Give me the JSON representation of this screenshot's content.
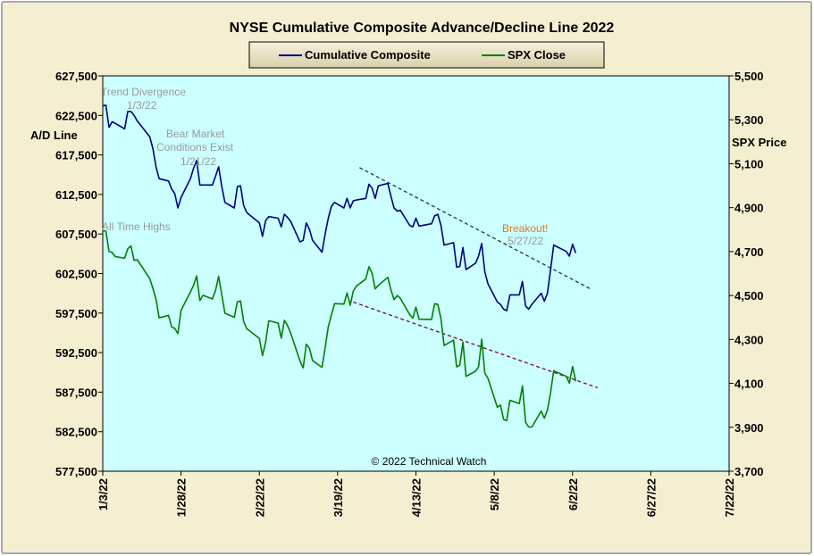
{
  "colors": {
    "outer_bg": "#f5efd2",
    "plot_bg": "#ccffff",
    "legend_bg": "#e9e2c4",
    "ad_line": "#000080",
    "spx_line": "#008000",
    "ad_trend": "#1f3b2a",
    "spx_trend": "#800040",
    "annotation_gray": "#9a9a9a",
    "breakout_orange": "#e07b22"
  },
  "chart_data": {
    "type": "line",
    "title": "NYSE Cumulative  Composite Advance/Decline Line 2022",
    "y_left_label": "A/D Line",
    "y_right_label": "SPX Price",
    "y_left_range": [
      577500,
      627500
    ],
    "y_right_range": [
      3700,
      5500
    ],
    "y_left_ticks": [
      "627,500",
      "622,500",
      "617,500",
      "612,500",
      "607,500",
      "602,500",
      "597,500",
      "592,500",
      "587,500",
      "582,500",
      "577,500"
    ],
    "y_right_ticks": [
      "5,500",
      "5,300",
      "5,100",
      "4,900",
      "4,700",
      "4,500",
      "4,300",
      "4,100",
      "3,900",
      "3,700"
    ],
    "x_range": [
      "2022-01-03",
      "2022-07-22"
    ],
    "x_ticks": [
      "1/3/22",
      "1/28/22",
      "2/22/22",
      "3/19/22",
      "4/13/22",
      "5/8/22",
      "6/2/22",
      "6/27/22",
      "7/22/22"
    ],
    "legend": {
      "placement": "top-center"
    },
    "series": [
      {
        "name": "Cumulative Composite",
        "axis": "left",
        "points": [
          [
            "2022-01-03",
            623700
          ],
          [
            "2022-01-04",
            623800
          ],
          [
            "2022-01-05",
            621000
          ],
          [
            "2022-01-06",
            621700
          ],
          [
            "2022-01-07",
            621500
          ],
          [
            "2022-01-10",
            620800
          ],
          [
            "2022-01-11",
            623000
          ],
          [
            "2022-01-12",
            623000
          ],
          [
            "2022-01-13",
            622500
          ],
          [
            "2022-01-14",
            621800
          ],
          [
            "2022-01-18",
            619800
          ],
          [
            "2022-01-19",
            618300
          ],
          [
            "2022-01-20",
            616000
          ],
          [
            "2022-01-21",
            614500
          ],
          [
            "2022-01-24",
            614200
          ],
          [
            "2022-01-25",
            613200
          ],
          [
            "2022-01-26",
            612600
          ],
          [
            "2022-01-27",
            610800
          ],
          [
            "2022-01-28",
            612100
          ],
          [
            "2022-01-31",
            614500
          ],
          [
            "2022-02-01",
            615800
          ],
          [
            "2022-02-02",
            616800
          ],
          [
            "2022-02-03",
            613700
          ],
          [
            "2022-02-04",
            613700
          ],
          [
            "2022-02-07",
            613700
          ],
          [
            "2022-02-08",
            614800
          ],
          [
            "2022-02-09",
            616000
          ],
          [
            "2022-02-10",
            613500
          ],
          [
            "2022-02-11",
            611500
          ],
          [
            "2022-02-14",
            610800
          ],
          [
            "2022-02-15",
            613500
          ],
          [
            "2022-02-16",
            613600
          ],
          [
            "2022-02-17",
            611100
          ],
          [
            "2022-02-18",
            610200
          ],
          [
            "2022-02-22",
            608900
          ],
          [
            "2022-02-23",
            607200
          ],
          [
            "2022-02-24",
            609200
          ],
          [
            "2022-02-25",
            609700
          ],
          [
            "2022-02-28",
            609500
          ],
          [
            "2022-03-01",
            608400
          ],
          [
            "2022-03-02",
            610000
          ],
          [
            "2022-03-03",
            609600
          ],
          [
            "2022-03-04",
            609100
          ],
          [
            "2022-03-07",
            606500
          ],
          [
            "2022-03-08",
            606700
          ],
          [
            "2022-03-09",
            608900
          ],
          [
            "2022-03-10",
            608100
          ],
          [
            "2022-03-11",
            606700
          ],
          [
            "2022-03-14",
            605200
          ],
          [
            "2022-03-15",
            607500
          ],
          [
            "2022-03-16",
            609500
          ],
          [
            "2022-03-17",
            611000
          ],
          [
            "2022-03-18",
            611500
          ],
          [
            "2022-03-21",
            610800
          ],
          [
            "2022-03-22",
            612000
          ],
          [
            "2022-03-23",
            610800
          ],
          [
            "2022-03-24",
            611700
          ],
          [
            "2022-03-25",
            611800
          ],
          [
            "2022-03-28",
            612000
          ],
          [
            "2022-03-29",
            613800
          ],
          [
            "2022-03-30",
            613300
          ],
          [
            "2022-03-31",
            612000
          ],
          [
            "2022-04-01",
            613600
          ],
          [
            "2022-04-04",
            613900
          ],
          [
            "2022-04-05",
            612300
          ],
          [
            "2022-04-06",
            610800
          ],
          [
            "2022-04-07",
            610400
          ],
          [
            "2022-04-08",
            610500
          ],
          [
            "2022-04-11",
            608600
          ],
          [
            "2022-04-12",
            608400
          ],
          [
            "2022-04-13",
            609500
          ],
          [
            "2022-04-14",
            608500
          ],
          [
            "2022-04-18",
            608800
          ],
          [
            "2022-04-19",
            609800
          ],
          [
            "2022-04-20",
            610000
          ],
          [
            "2022-04-21",
            608600
          ],
          [
            "2022-04-22",
            606100
          ],
          [
            "2022-04-25",
            606400
          ],
          [
            "2022-04-26",
            603300
          ],
          [
            "2022-04-27",
            603400
          ],
          [
            "2022-04-28",
            605800
          ],
          [
            "2022-04-29",
            603000
          ],
          [
            "2022-05-02",
            603800
          ],
          [
            "2022-05-03",
            604700
          ],
          [
            "2022-05-04",
            606300
          ],
          [
            "2022-05-05",
            602700
          ],
          [
            "2022-05-06",
            601200
          ],
          [
            "2022-05-09",
            598900
          ],
          [
            "2022-05-10",
            598600
          ],
          [
            "2022-05-11",
            598000
          ],
          [
            "2022-05-12",
            597800
          ],
          [
            "2022-05-13",
            599800
          ],
          [
            "2022-05-16",
            599800
          ],
          [
            "2022-05-17",
            601500
          ],
          [
            "2022-05-18",
            598400
          ],
          [
            "2022-05-19",
            598000
          ],
          [
            "2022-05-20",
            598600
          ],
          [
            "2022-05-23",
            600000
          ],
          [
            "2022-05-24",
            599000
          ],
          [
            "2022-05-25",
            600000
          ],
          [
            "2022-05-26",
            603000
          ],
          [
            "2022-05-27",
            606100
          ],
          [
            "2022-05-31",
            605300
          ],
          [
            "2022-06-01",
            604700
          ],
          [
            "2022-06-02",
            606200
          ],
          [
            "2022-06-03",
            605100
          ]
        ]
      },
      {
        "name": "SPX Close",
        "axis": "right",
        "points": [
          [
            "2022-01-03",
            4796
          ],
          [
            "2022-01-04",
            4793
          ],
          [
            "2022-01-05",
            4701
          ],
          [
            "2022-01-06",
            4696
          ],
          [
            "2022-01-07",
            4677
          ],
          [
            "2022-01-10",
            4670
          ],
          [
            "2022-01-11",
            4713
          ],
          [
            "2022-01-12",
            4726
          ],
          [
            "2022-01-13",
            4660
          ],
          [
            "2022-01-14",
            4663
          ],
          [
            "2022-01-18",
            4577
          ],
          [
            "2022-01-19",
            4533
          ],
          [
            "2022-01-20",
            4483
          ],
          [
            "2022-01-21",
            4398
          ],
          [
            "2022-01-24",
            4410
          ],
          [
            "2022-01-25",
            4357
          ],
          [
            "2022-01-26",
            4350
          ],
          [
            "2022-01-27",
            4326
          ],
          [
            "2022-01-28",
            4432
          ],
          [
            "2022-01-31",
            4516
          ],
          [
            "2022-02-01",
            4546
          ],
          [
            "2022-02-02",
            4589
          ],
          [
            "2022-02-03",
            4477
          ],
          [
            "2022-02-04",
            4501
          ],
          [
            "2022-02-07",
            4484
          ],
          [
            "2022-02-08",
            4522
          ],
          [
            "2022-02-09",
            4587
          ],
          [
            "2022-02-10",
            4504
          ],
          [
            "2022-02-11",
            4419
          ],
          [
            "2022-02-14",
            4401
          ],
          [
            "2022-02-15",
            4472
          ],
          [
            "2022-02-16",
            4475
          ],
          [
            "2022-02-17",
            4381
          ],
          [
            "2022-02-18",
            4349
          ],
          [
            "2022-02-22",
            4304
          ],
          [
            "2022-02-23",
            4226
          ],
          [
            "2022-02-24",
            4288
          ],
          [
            "2022-02-25",
            4385
          ],
          [
            "2022-02-28",
            4374
          ],
          [
            "2022-03-01",
            4306
          ],
          [
            "2022-03-02",
            4387
          ],
          [
            "2022-03-03",
            4363
          ],
          [
            "2022-03-04",
            4329
          ],
          [
            "2022-03-07",
            4201
          ],
          [
            "2022-03-08",
            4171
          ],
          [
            "2022-03-09",
            4278
          ],
          [
            "2022-03-10",
            4260
          ],
          [
            "2022-03-11",
            4204
          ],
          [
            "2022-03-14",
            4173
          ],
          [
            "2022-03-15",
            4262
          ],
          [
            "2022-03-16",
            4358
          ],
          [
            "2022-03-17",
            4412
          ],
          [
            "2022-03-18",
            4463
          ],
          [
            "2022-03-21",
            4461
          ],
          [
            "2022-03-22",
            4512
          ],
          [
            "2022-03-23",
            4456
          ],
          [
            "2022-03-24",
            4520
          ],
          [
            "2022-03-25",
            4543
          ],
          [
            "2022-03-28",
            4575
          ],
          [
            "2022-03-29",
            4631
          ],
          [
            "2022-03-30",
            4602
          ],
          [
            "2022-03-31",
            4530
          ],
          [
            "2022-04-01",
            4546
          ],
          [
            "2022-04-04",
            4583
          ],
          [
            "2022-04-05",
            4526
          ],
          [
            "2022-04-06",
            4481
          ],
          [
            "2022-04-07",
            4500
          ],
          [
            "2022-04-08",
            4488
          ],
          [
            "2022-04-11",
            4413
          ],
          [
            "2022-04-12",
            4397
          ],
          [
            "2022-04-13",
            4447
          ],
          [
            "2022-04-14",
            4392
          ],
          [
            "2022-04-18",
            4391
          ],
          [
            "2022-04-19",
            4463
          ],
          [
            "2022-04-20",
            4459
          ],
          [
            "2022-04-21",
            4394
          ],
          [
            "2022-04-22",
            4272
          ],
          [
            "2022-04-25",
            4297
          ],
          [
            "2022-04-26",
            4175
          ],
          [
            "2022-04-27",
            4183
          ],
          [
            "2022-04-28",
            4288
          ],
          [
            "2022-04-29",
            4132
          ],
          [
            "2022-05-02",
            4155
          ],
          [
            "2022-05-03",
            4175
          ],
          [
            "2022-05-04",
            4301
          ],
          [
            "2022-05-05",
            4147
          ],
          [
            "2022-05-06",
            4123
          ],
          [
            "2022-05-09",
            3991
          ],
          [
            "2022-05-10",
            4001
          ],
          [
            "2022-05-11",
            3936
          ],
          [
            "2022-05-12",
            3930
          ],
          [
            "2022-05-13",
            4023
          ],
          [
            "2022-05-16",
            4008
          ],
          [
            "2022-05-17",
            4088
          ],
          [
            "2022-05-18",
            3923
          ],
          [
            "2022-05-19",
            3901
          ],
          [
            "2022-05-20",
            3901
          ],
          [
            "2022-05-23",
            3974
          ],
          [
            "2022-05-24",
            3941
          ],
          [
            "2022-05-25",
            3979
          ],
          [
            "2022-05-26",
            4058
          ],
          [
            "2022-05-27",
            4158
          ],
          [
            "2022-05-31",
            4132
          ],
          [
            "2022-06-01",
            4101
          ],
          [
            "2022-06-02",
            4177
          ],
          [
            "2022-06-03",
            4109
          ]
        ]
      }
    ],
    "trendlines": [
      {
        "axis": "left",
        "style": "dashed",
        "from": [
          "2022-03-26",
          615900
        ],
        "to": [
          "2022-06-08",
          600500
        ]
      },
      {
        "axis": "right",
        "style": "dashed",
        "from": [
          "2022-03-24",
          4470
        ],
        "to": [
          "2022-06-10",
          4080
        ]
      }
    ],
    "annotations": [
      {
        "id": "trend",
        "lines": [
          "Trend  Divergence",
          "1/3/22"
        ]
      },
      {
        "id": "bear",
        "lines": [
          "Bear Market",
          "Conditions  Exist",
          "1/21/22"
        ]
      },
      {
        "id": "ath",
        "lines": [
          "All Time  Highs"
        ]
      },
      {
        "id": "breakout",
        "lines": [
          "Breakout!",
          "5/27/22"
        ]
      }
    ],
    "copyright": "© 2022 Technical  Watch"
  }
}
